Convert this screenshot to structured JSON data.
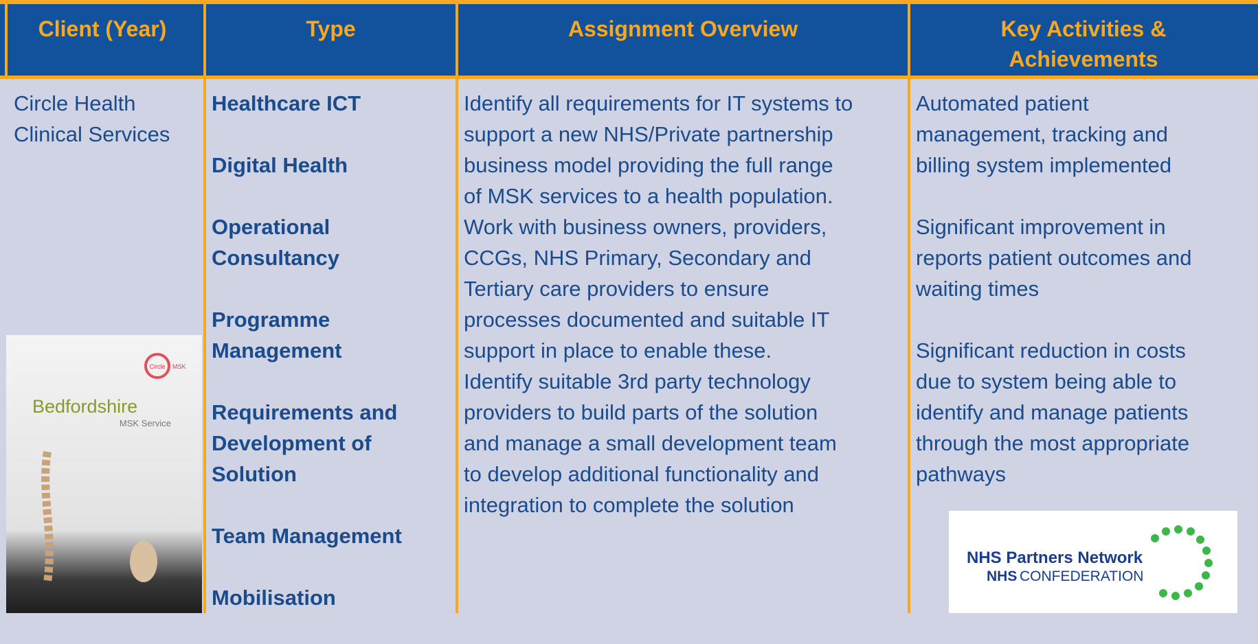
{
  "table": {
    "headers": [
      "Client (Year)",
      "Type",
      "Assignment Overview",
      "Key Activities & Achievements"
    ],
    "rows": [
      {
        "client": [
          "Circle Health",
          "Clinical Services"
        ],
        "types": [
          [
            "Healthcare ICT"
          ],
          [
            "Digital Health"
          ],
          [
            "Operational",
            "Consultancy"
          ],
          [
            "Programme",
            "Management"
          ],
          [
            "Requirements and",
            "Development of",
            "Solution"
          ],
          [
            "Team Management"
          ],
          [
            "Mobilisation"
          ]
        ],
        "overview": [
          "Identify all requirements for IT systems to",
          "support a new NHS/Private partnership",
          "business model providing the full range",
          "of MSK services to a health population.",
          "Work with business owners, providers,",
          "CCGs, NHS Primary, Secondary and",
          "Tertiary care providers to ensure",
          "processes documented and suitable IT",
          "support in place to enable these.",
          "Identify suitable 3rd party technology",
          "providers to build parts of the solution",
          "and manage a small development team",
          "to develop additional functionality and",
          "integration to complete the solution"
        ],
        "achievements": [
          [
            "Automated patient",
            "management, tracking and",
            "billing system implemented"
          ],
          [
            "Significant improvement in",
            "reports patient outcomes and",
            "waiting  times"
          ],
          [
            "Significant reduction in costs",
            "due to system being able to",
            "identify and manage patients",
            "through the most appropriate",
            "pathways"
          ]
        ]
      }
    ]
  },
  "images": {
    "brochure": {
      "brand": "Circle",
      "brand_sub": "MSK",
      "title": "Bedfordshire",
      "subtitle": "MSK Service"
    },
    "logo": {
      "line1": "NHS Partners Network",
      "line2_bold": "NHS",
      "line2": "CONFEDERATION"
    }
  }
}
